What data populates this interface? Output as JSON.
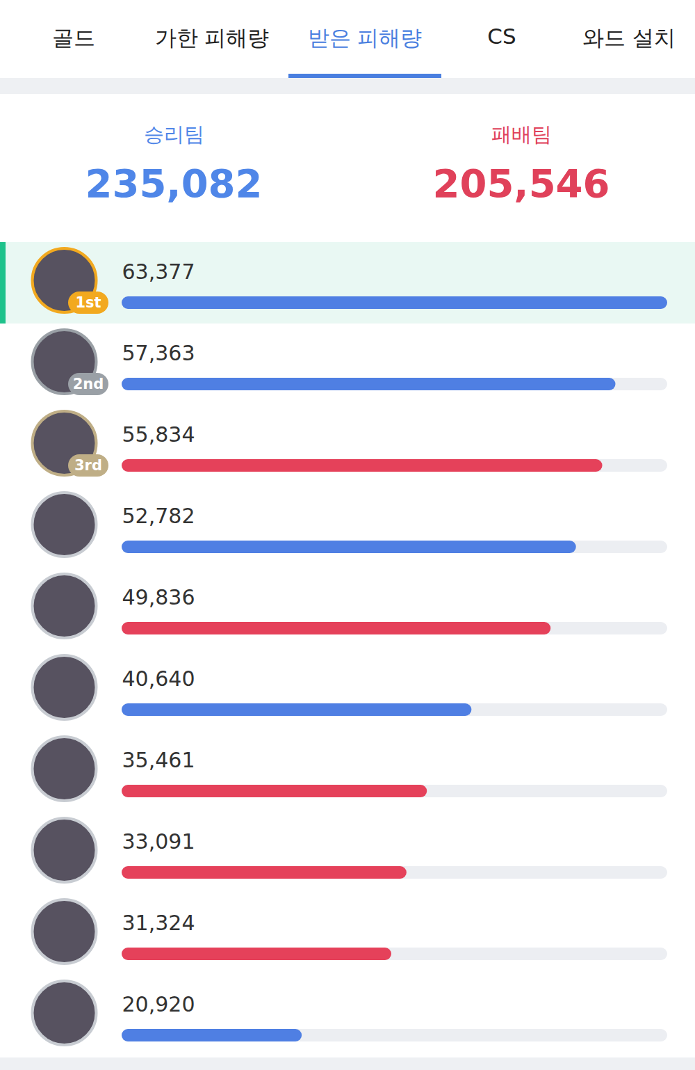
{
  "tabs": [
    "골드",
    "가한 피해량",
    "받은 피해량",
    "CS",
    "와드 설치"
  ],
  "active_tab": "받은 피해량",
  "teams": [
    {
      "label": "승리팀",
      "total": "235,082",
      "color": "#4f86e8"
    },
    {
      "label": "패배팀",
      "total": "205,546",
      "color": "#e0415a"
    }
  ],
  "chart_data": {
    "type": "bar",
    "orientation": "horizontal",
    "categories": [
      null,
      null,
      null,
      null,
      null,
      null,
      null,
      null,
      null,
      null
    ],
    "values": [
      63377,
      57363,
      55834,
      52782,
      49836,
      40640,
      35461,
      33091,
      31324,
      20920
    ],
    "value_labels": [
      "63,377",
      "57,363",
      "55,834",
      "52,782",
      "49,836",
      "40,640",
      "35,461",
      "33,091",
      "31,324",
      "20,920"
    ],
    "rank_labels": [
      "1st",
      "2nd",
      "3rd",
      null,
      null,
      null,
      null,
      null,
      null,
      null
    ],
    "colors": [
      "#4f7fe3",
      "#4f7fe3",
      "#e5415a",
      "#4f7fe3",
      "#e5415a",
      "#4f7fe3",
      "#e5415a",
      "#e5415a",
      "#e5415a",
      "#4f7fe3"
    ],
    "xlim": [
      0,
      63377
    ],
    "data_labels": true,
    "tick_labels": false,
    "grid": false
  }
}
